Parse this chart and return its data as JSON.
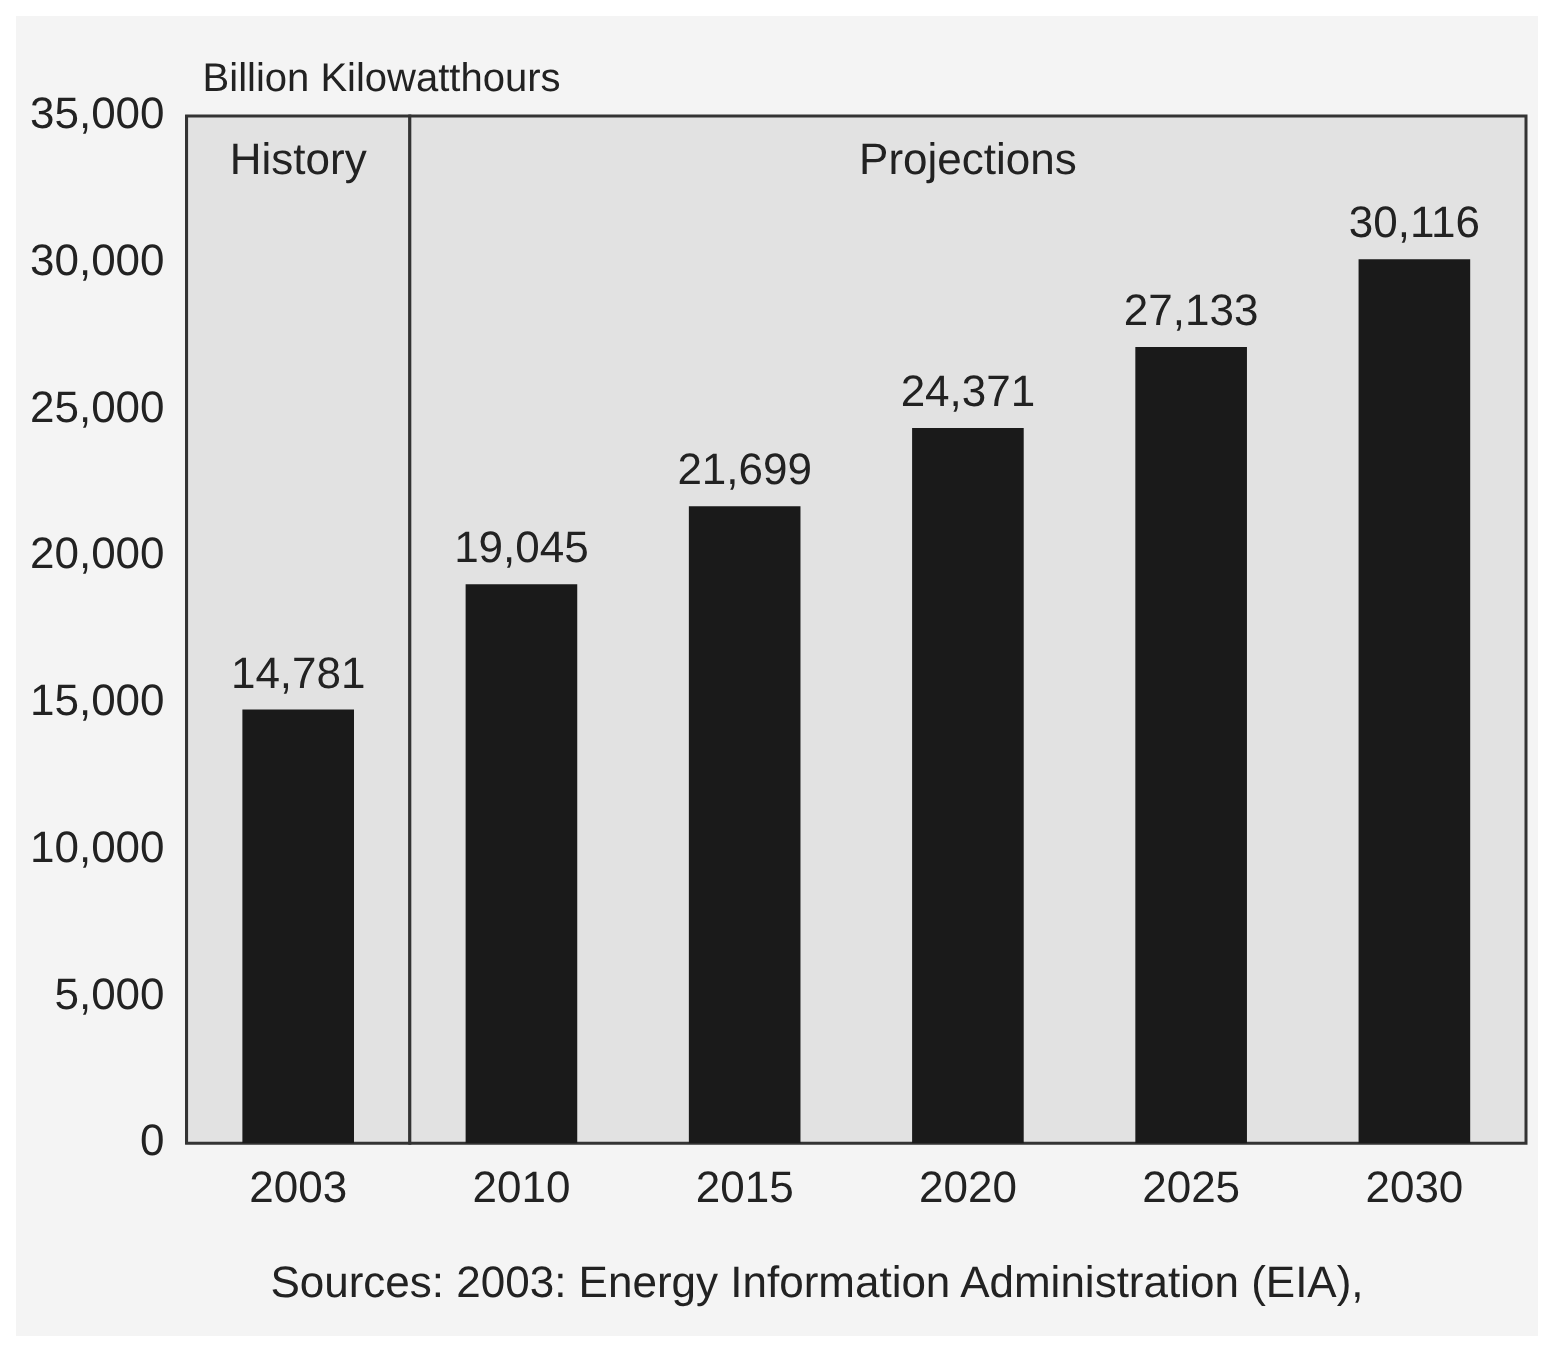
{
  "chart_data": {
    "type": "bar",
    "ylabel": "Billion Kilowatthours",
    "categories": [
      "2003",
      "2010",
      "2015",
      "2020",
      "2025",
      "2030"
    ],
    "values": [
      14781,
      19045,
      21699,
      24371,
      27133,
      30116
    ],
    "value_labels": [
      "14,781",
      "19,045",
      "21,699",
      "24,371",
      "27,133",
      "30,116"
    ],
    "color": "#1a1a1a",
    "ylim": [
      0,
      35000
    ],
    "yticks": [
      {
        "value": 0,
        "label": "0"
      },
      {
        "value": 5000,
        "label": "5,000"
      },
      {
        "value": 10000,
        "label": "10,000"
      },
      {
        "value": 15000,
        "label": "15,000"
      },
      {
        "value": 20000,
        "label": "20,000"
      },
      {
        "value": 25000,
        "label": "25,000"
      },
      {
        "value": 30000,
        "label": "30,000"
      },
      {
        "value": 35000,
        "label": "35,000"
      }
    ],
    "bands": [
      {
        "axis": "x",
        "from": "2003",
        "to": "2003",
        "label": "History",
        "color": "#e2e2e2"
      },
      {
        "axis": "x",
        "from": "2010",
        "to": "2030",
        "label": "Projections",
        "color": "#e2e2e2"
      }
    ],
    "grid": false,
    "legend": false,
    "annotations": [
      "Sources: 2003: Energy Information Administration (EIA),"
    ]
  }
}
